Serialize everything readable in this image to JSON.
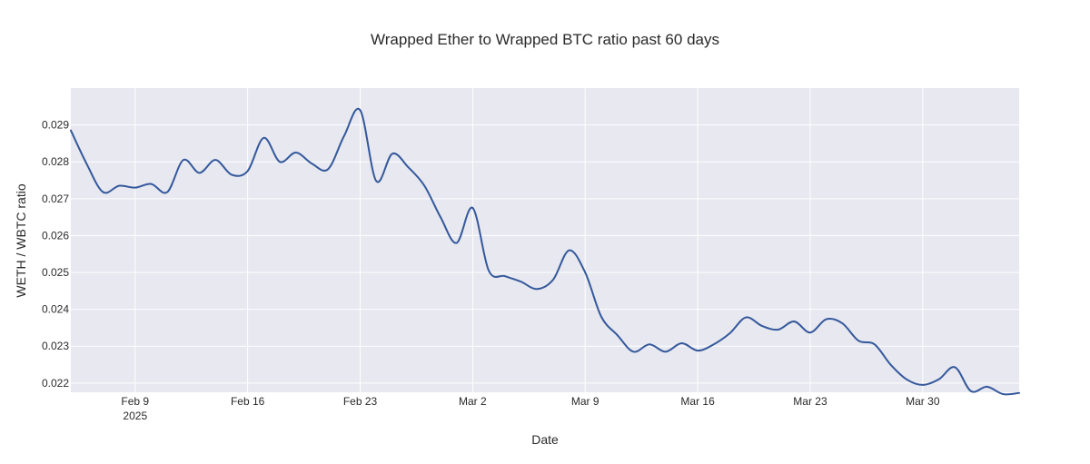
{
  "chart_data": {
    "type": "line",
    "title": "Wrapped Ether to Wrapped BTC ratio past 60 days",
    "xlabel": "Date",
    "ylabel": "WETH / WBTC ratio",
    "x_ticks": [
      {
        "date": "2025-02-09",
        "label": "Feb 9",
        "sublabel": "2025"
      },
      {
        "date": "2025-02-16",
        "label": "Feb 16"
      },
      {
        "date": "2025-02-23",
        "label": "Feb 23"
      },
      {
        "date": "2025-03-02",
        "label": "Mar 2"
      },
      {
        "date": "2025-03-09",
        "label": "Mar 9"
      },
      {
        "date": "2025-03-16",
        "label": "Mar 16"
      },
      {
        "date": "2025-03-23",
        "label": "Mar 23"
      },
      {
        "date": "2025-03-30",
        "label": "Mar 30"
      }
    ],
    "y_ticks": [
      0.022,
      0.023,
      0.024,
      0.025,
      0.026,
      0.027,
      0.028,
      0.029
    ],
    "xlim": [
      "2025-02-05",
      "2025-04-05"
    ],
    "ylim": [
      0.02175,
      0.03
    ],
    "grid": true,
    "colors": {
      "line": "#34589b",
      "plot_bg": "#e7e8f0",
      "grid": "#ffffff"
    },
    "series": [
      {
        "points": [
          [
            "2025-02-05",
            0.02885
          ],
          [
            "2025-02-06",
            0.02793
          ],
          [
            "2025-02-07",
            0.02718
          ],
          [
            "2025-02-08",
            0.02735
          ],
          [
            "2025-02-09",
            0.0273
          ],
          [
            "2025-02-10",
            0.0274
          ],
          [
            "2025-02-11",
            0.02718
          ],
          [
            "2025-02-12",
            0.02805
          ],
          [
            "2025-02-13",
            0.0277
          ],
          [
            "2025-02-14",
            0.02805
          ],
          [
            "2025-02-15",
            0.02765
          ],
          [
            "2025-02-16",
            0.02775
          ],
          [
            "2025-02-17",
            0.02865
          ],
          [
            "2025-02-18",
            0.028
          ],
          [
            "2025-02-19",
            0.02825
          ],
          [
            "2025-02-20",
            0.02795
          ],
          [
            "2025-02-21",
            0.0278
          ],
          [
            "2025-02-22",
            0.0287
          ],
          [
            "2025-02-23",
            0.0294
          ],
          [
            "2025-02-24",
            0.02748
          ],
          [
            "2025-02-25",
            0.02822
          ],
          [
            "2025-02-26",
            0.02785
          ],
          [
            "2025-02-27",
            0.02735
          ],
          [
            "2025-02-28",
            0.0265
          ],
          [
            "2025-03-01",
            0.0258
          ],
          [
            "2025-03-02",
            0.02675
          ],
          [
            "2025-03-03",
            0.02505
          ],
          [
            "2025-03-04",
            0.0249
          ],
          [
            "2025-03-05",
            0.02475
          ],
          [
            "2025-03-06",
            0.02455
          ],
          [
            "2025-03-07",
            0.0248
          ],
          [
            "2025-03-08",
            0.0256
          ],
          [
            "2025-03-09",
            0.025
          ],
          [
            "2025-03-10",
            0.0238
          ],
          [
            "2025-03-11",
            0.0233
          ],
          [
            "2025-03-12",
            0.02285
          ],
          [
            "2025-03-13",
            0.02305
          ],
          [
            "2025-03-14",
            0.02285
          ],
          [
            "2025-03-15",
            0.02308
          ],
          [
            "2025-03-16",
            0.02288
          ],
          [
            "2025-03-17",
            0.02305
          ],
          [
            "2025-03-18",
            0.02335
          ],
          [
            "2025-03-19",
            0.02378
          ],
          [
            "2025-03-20",
            0.02355
          ],
          [
            "2025-03-21",
            0.02345
          ],
          [
            "2025-03-22",
            0.02367
          ],
          [
            "2025-03-23",
            0.02337
          ],
          [
            "2025-03-24",
            0.02373
          ],
          [
            "2025-03-25",
            0.02362
          ],
          [
            "2025-03-26",
            0.02315
          ],
          [
            "2025-03-27",
            0.02305
          ],
          [
            "2025-03-28",
            0.0225
          ],
          [
            "2025-03-29",
            0.0221
          ],
          [
            "2025-03-30",
            0.02195
          ],
          [
            "2025-03-31",
            0.0221
          ],
          [
            "2025-04-01",
            0.02243
          ],
          [
            "2025-04-02",
            0.02178
          ],
          [
            "2025-04-03",
            0.0219
          ],
          [
            "2025-04-04",
            0.0217
          ],
          [
            "2025-04-05",
            0.02173
          ]
        ]
      }
    ]
  }
}
